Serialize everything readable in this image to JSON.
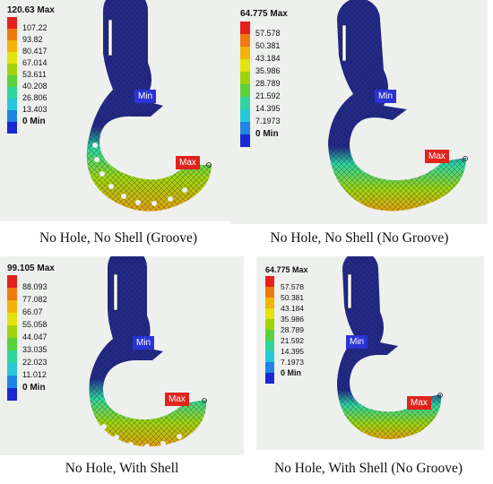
{
  "panels": [
    {
      "legend": {
        "max_label": "120.63 Max",
        "values": [
          "107.22",
          "93.82",
          "80.417",
          "67.014",
          "53.611",
          "40.208",
          "26.806",
          "13.403"
        ],
        "min_label": "0 Min"
      },
      "min_tag": "Min",
      "max_tag": "Max",
      "caption": "No Hole, No Shell (Groove)"
    },
    {
      "legend": {
        "max_label": "64.775 Max",
        "values": [
          "57.578",
          "50.381",
          "43.184",
          "35.986",
          "28.789",
          "21.592",
          "14.395",
          "7.1973"
        ],
        "min_label": "0 Min"
      },
      "min_tag": "Min",
      "max_tag": "Max",
      "caption": "No Hole, No Shell (No Groove)"
    },
    {
      "legend": {
        "max_label": "99.105 Max",
        "values": [
          "88.093",
          "77.082",
          "66.07",
          "55.058",
          "44.047",
          "33.035",
          "22.023",
          "11.012"
        ],
        "min_label": "0 Min"
      },
      "min_tag": "Min",
      "max_tag": "Max",
      "caption": "No Hole, With Shell"
    },
    {
      "legend": {
        "max_label": "64.775 Max",
        "values": [
          "57.578",
          "50.381",
          "43.184",
          "35.986",
          "28.789",
          "21.592",
          "14.395",
          "7.1973"
        ],
        "min_label": "0 Min"
      },
      "min_tag": "Min",
      "max_tag": "Max",
      "caption": "No Hole, With Shell (No Groove)"
    }
  ],
  "colors": {
    "scale": [
      "#e4211b",
      "#f07a10",
      "#f2b40a",
      "#e3e20c",
      "#9fd40c",
      "#5ad23c",
      "#2fd59c",
      "#27c8d9",
      "#1f84e6",
      "#1a27d4"
    ],
    "hook_body": "#232a86",
    "mesh": "#111a55"
  }
}
